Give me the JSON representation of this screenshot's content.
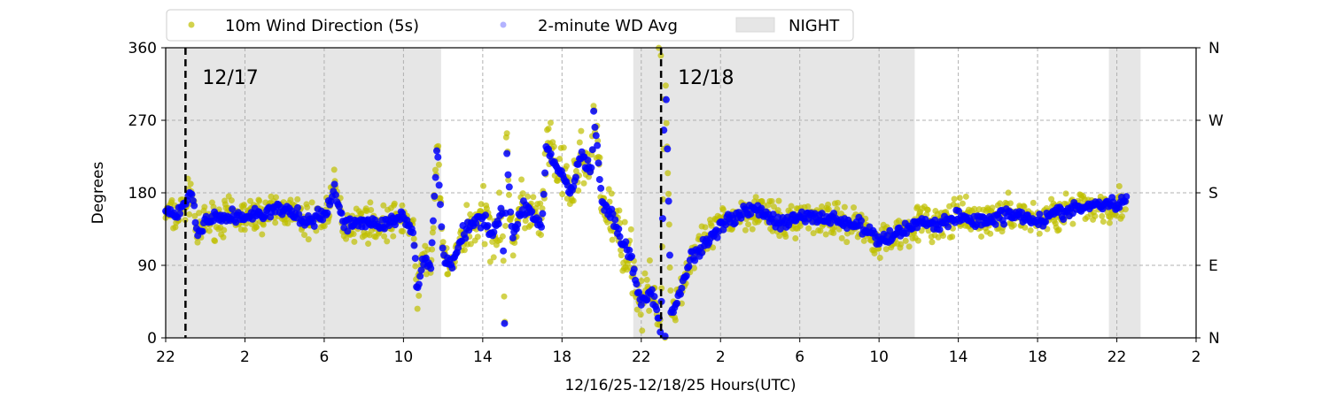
{
  "chart_data": {
    "type": "scatter",
    "title": "",
    "xlabel": "12/16/25-12/18/25  Hours(UTC)",
    "ylabel": "Degrees",
    "xlim_hours": [
      0,
      52
    ],
    "ylim": [
      0,
      360
    ],
    "x_ticks": [
      "22",
      "2",
      "6",
      "10",
      "14",
      "18",
      "22",
      "2",
      "6",
      "10",
      "14",
      "18",
      "22",
      "2"
    ],
    "y_ticks": [
      "0",
      "90",
      "180",
      "270",
      "360"
    ],
    "y2_ticks": [
      "N",
      "E",
      "S",
      "W",
      "N"
    ],
    "grid": true,
    "legend": {
      "placement": "top",
      "entries": [
        "10m Wind Direction (5s)",
        "2-minute WD Avg",
        "NIGHT"
      ]
    },
    "night_spans_hours": [
      [
        0,
        13.9
      ],
      [
        23.6,
        37.8
      ],
      [
        47.6,
        49.2
      ]
    ],
    "day_markers": [
      {
        "hour": 1,
        "label": "12/17"
      },
      {
        "hour": 25,
        "label": "12/18"
      }
    ],
    "colors": {
      "raw": "#bfbf00",
      "avg": "#0000ff",
      "night": "#e6e6e6"
    },
    "series": [
      {
        "name": "2-minute WD Avg",
        "x": [
          0,
          0.5,
          1,
          1.3,
          1.6,
          2,
          3,
          4,
          5,
          6,
          7,
          8,
          8.5,
          9,
          10,
          11,
          12,
          12.5,
          12.7,
          13,
          13.4,
          13.7,
          14,
          14.5,
          15,
          16,
          16.5,
          17,
          17.1,
          17.2,
          17.5,
          18,
          19,
          19.2,
          20,
          20.5,
          21,
          21.5,
          21.6,
          22,
          22.5,
          23,
          23.4,
          24,
          24.5,
          25,
          25.2,
          25.3,
          25.5,
          26,
          26.5,
          27,
          28,
          29,
          30,
          31,
          32,
          33,
          34,
          35,
          36,
          37,
          38,
          39,
          40,
          41,
          42,
          43,
          44,
          45,
          46,
          47,
          48,
          48.5
        ],
        "y": [
          155,
          150,
          165,
          185,
          125,
          145,
          150,
          150,
          155,
          160,
          145,
          150,
          185,
          140,
          145,
          140,
          150,
          130,
          60,
          100,
          90,
          245,
          100,
          90,
          130,
          150,
          130,
          160,
          20,
          238,
          120,
          165,
          140,
          236,
          200,
          180,
          230,
          200,
          280,
          170,
          150,
          120,
          105,
          40,
          60,
          10,
          355,
          258,
          30,
          60,
          100,
          110,
          140,
          155,
          160,
          140,
          150,
          150,
          145,
          140,
          120,
          130,
          145,
          140,
          150,
          145,
          150,
          155,
          145,
          155,
          160,
          165,
          165,
          170
        ]
      },
      {
        "name": "10m Wind Direction (5s)",
        "follows_series": "2-minute WD Avg",
        "spread_deg": 25
      }
    ]
  }
}
